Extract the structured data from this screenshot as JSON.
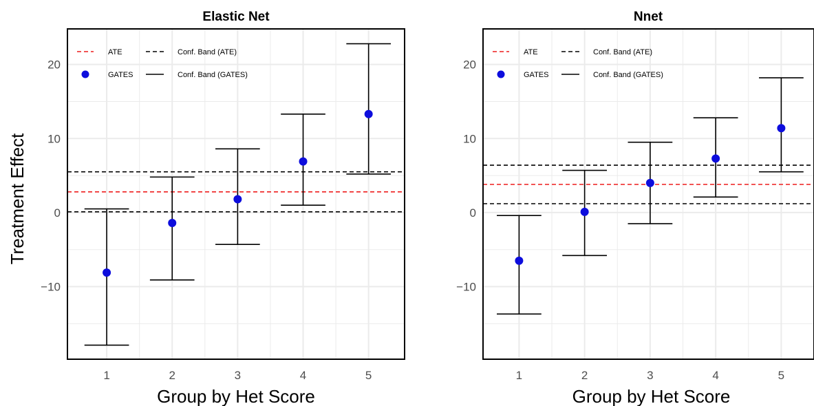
{
  "chart_data": [
    {
      "type": "scatter",
      "title": "Elastic Net",
      "xlabel": "Group by Het Score",
      "ylabel": "Treatment Effect",
      "categories": [
        "1",
        "2",
        "3",
        "4",
        "5"
      ],
      "y_ticks": [
        "20",
        "10",
        "0",
        "−10"
      ],
      "y_tick_values": [
        20,
        10,
        0,
        -10
      ],
      "xlim": [
        0.4,
        5.55
      ],
      "ylim": [
        -19.8,
        24.8
      ],
      "grid": true,
      "legend_position": "top-left",
      "ate": 2.8,
      "ate_band": [
        0.1,
        5.5
      ],
      "series": [
        {
          "name": "GATES",
          "values": [
            -8.1,
            -1.4,
            1.8,
            6.9,
            13.3
          ],
          "lower": [
            -17.9,
            -9.1,
            -4.3,
            1.0,
            5.2
          ],
          "upper": [
            0.5,
            4.8,
            8.6,
            13.3,
            22.8
          ]
        }
      ]
    },
    {
      "type": "scatter",
      "title": "Nnet",
      "xlabel": "Group by Het Score",
      "ylabel": "",
      "categories": [
        "1",
        "2",
        "3",
        "4",
        "5"
      ],
      "y_ticks": [
        "20",
        "10",
        "0",
        "−10"
      ],
      "y_tick_values": [
        20,
        10,
        0,
        -10
      ],
      "xlim": [
        0.45,
        5.5
      ],
      "ylim": [
        -19.8,
        24.8
      ],
      "grid": true,
      "legend_position": "top-left",
      "ate": 3.8,
      "ate_band": [
        1.2,
        6.4
      ],
      "series": [
        {
          "name": "GATES",
          "values": [
            -6.5,
            0.1,
            4.0,
            7.3,
            11.4
          ],
          "lower": [
            -13.7,
            -5.8,
            -1.5,
            2.1,
            5.5
          ],
          "upper": [
            -0.4,
            5.7,
            9.5,
            12.8,
            18.2
          ]
        }
      ]
    }
  ],
  "legend": {
    "ate_label": "ATE",
    "gates_label": "GATES",
    "band_ate_label": "Conf. Band (ATE)",
    "band_gates_label": "Conf. Band (GATES)"
  },
  "colors": {
    "ate_line": "#ee1c1c",
    "point": "#0d0ddd",
    "band": "#000000",
    "grid": "#ebebeb"
  }
}
